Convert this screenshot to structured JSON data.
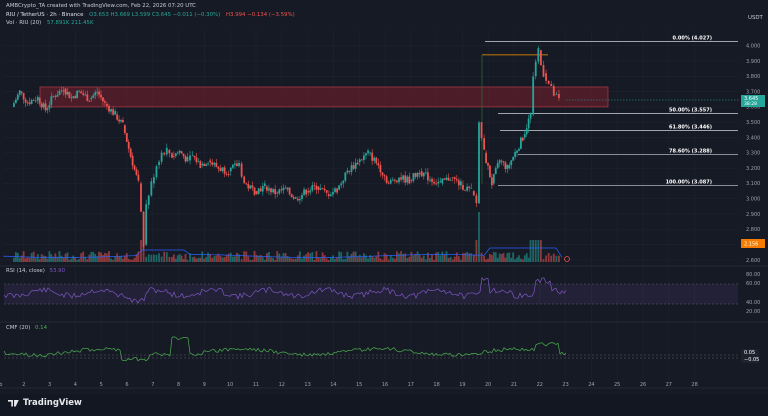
{
  "header": {
    "credit": "AMBCrypto_TA created with TradingView.com, Feb 22, 2026 07:20 UTC",
    "symbol_line": "RIU / TetherUS · 2h · Binance",
    "ohlc": "O3.653 H3.669 L3.599 C3.645 −0.011 (−0.30%)",
    "extra": "H3.994 −0.134 (−3.59%)",
    "vol_label": "Vol · RIU (20)",
    "vol_values": "57.891K 211.45K",
    "currency": "USDT"
  },
  "colors": {
    "up": "#26a69a",
    "down": "#ef5350",
    "supply_zone": "#7a1f2e",
    "fib_line": "#d1d4dc",
    "fib_top_line": "#ff9800",
    "rsi": "#7e57c2",
    "cmf": "#4caf50",
    "volume_ma": "#2962ff"
  },
  "chart_data": {
    "type": "candlestick",
    "pair": "RIU/USDT",
    "timeframe": "2h",
    "x_ticks": [
      "Feb",
      "2",
      "3",
      "4",
      "5",
      "6",
      "7",
      "8",
      "9",
      "10",
      "11",
      "12",
      "13",
      "14",
      "15",
      "16",
      "17",
      "18",
      "19",
      "20",
      "21",
      "22",
      "23",
      "24",
      "25",
      "26",
      "27",
      "28"
    ],
    "price_ticks": [
      "4.000",
      "3.900",
      "3.800",
      "3.700",
      "3.600",
      "3.500",
      "3.400",
      "3.300",
      "3.200",
      "3.100",
      "3.000",
      "2.900",
      "2.800",
      "2.700",
      "2.600"
    ],
    "current_price": "3.645",
    "current_price_time": "38:28",
    "volume_label": "2.156",
    "fib_levels": [
      {
        "label": "0.00% (4.027)",
        "price": 4.027
      },
      {
        "label": "50.00% (3.557)",
        "price": 3.557
      },
      {
        "label": "61.80% (3.446)",
        "price": 3.446
      },
      {
        "label": "78.60% (3.288)",
        "price": 3.288
      },
      {
        "label": "100.00% (3.087)",
        "price": 3.087
      }
    ],
    "supply_zone": {
      "from": 3.6,
      "to": 3.73
    },
    "close_path": [
      [
        1,
        3.6
      ],
      [
        1.3,
        3.7
      ],
      [
        1.6,
        3.63
      ],
      [
        2,
        3.66
      ],
      [
        2.3,
        3.58
      ],
      [
        2.6,
        3.67
      ],
      [
        3,
        3.72
      ],
      [
        3.3,
        3.66
      ],
      [
        3.6,
        3.7
      ],
      [
        4,
        3.65
      ],
      [
        4.3,
        3.7
      ],
      [
        4.6,
        3.62
      ],
      [
        5,
        3.55
      ],
      [
        5.3,
        3.48
      ],
      [
        5.6,
        3.28
      ],
      [
        5.9,
        3.1
      ],
      [
        6.1,
        2.7
      ],
      [
        6.2,
        2.96
      ],
      [
        6.4,
        3.1
      ],
      [
        6.6,
        3.22
      ],
      [
        6.8,
        3.3
      ],
      [
        7,
        3.32
      ],
      [
        7.2,
        3.28
      ],
      [
        7.5,
        3.31
      ],
      [
        7.8,
        3.25
      ],
      [
        8,
        3.28
      ],
      [
        8.3,
        3.22
      ],
      [
        8.6,
        3.25
      ],
      [
        9,
        3.2
      ],
      [
        9.4,
        3.18
      ],
      [
        9.8,
        3.23
      ],
      [
        10,
        3.1
      ],
      [
        10.4,
        3.05
      ],
      [
        10.8,
        3.08
      ],
      [
        11.2,
        3.04
      ],
      [
        11.6,
        3.06
      ],
      [
        12,
        3.0
      ],
      [
        12.4,
        3.05
      ],
      [
        12.8,
        3.08
      ],
      [
        13.2,
        3.03
      ],
      [
        13.6,
        3.06
      ],
      [
        14,
        3.18
      ],
      [
        14.4,
        3.24
      ],
      [
        14.8,
        3.3
      ],
      [
        15.2,
        3.22
      ],
      [
        15.6,
        3.1
      ],
      [
        16,
        3.14
      ],
      [
        16.4,
        3.12
      ],
      [
        16.8,
        3.18
      ],
      [
        17.2,
        3.13
      ],
      [
        17.6,
        3.1
      ],
      [
        18,
        3.14
      ],
      [
        18.4,
        3.09
      ],
      [
        18.8,
        3.05
      ],
      [
        19,
        2.97
      ],
      [
        19.1,
        3.5
      ],
      [
        19.3,
        3.3
      ],
      [
        19.6,
        3.1
      ],
      [
        19.9,
        3.25
      ],
      [
        20.2,
        3.2
      ],
      [
        20.5,
        3.3
      ],
      [
        20.8,
        3.4
      ],
      [
        21.1,
        3.55
      ],
      [
        21.2,
        3.8
      ],
      [
        21.4,
        3.97
      ],
      [
        21.6,
        3.82
      ],
      [
        21.8,
        3.75
      ],
      [
        22,
        3.68
      ],
      [
        22.2,
        3.645
      ]
    ],
    "rsi": {
      "label": "RSI (14, close)",
      "value": "53.90",
      "ticks": [
        "80.00",
        "60.00",
        "40.00",
        "20.00"
      ]
    },
    "cmf": {
      "label": "CMF (20)",
      "value": "0.14",
      "ticks": [
        "0.05",
        "−0.05"
      ]
    }
  },
  "footer": {
    "brand": "TradingView"
  }
}
